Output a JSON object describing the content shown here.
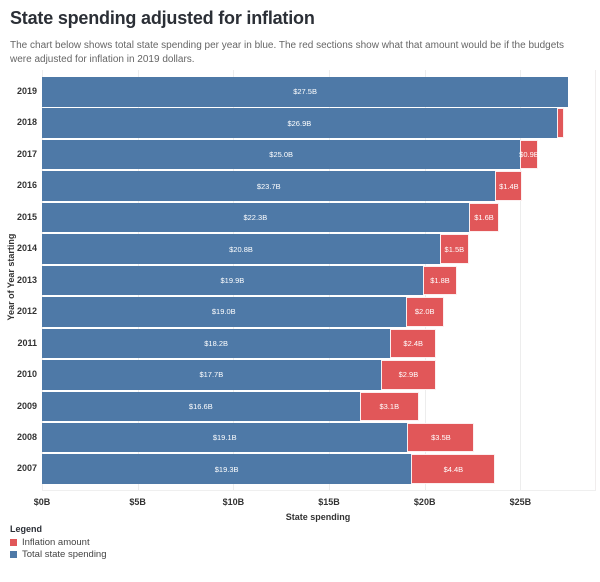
{
  "header": {
    "title": "State spending adjusted for inflation",
    "subtitle": "The chart below shows total state spending per year in blue. The red sections show what that amount would be if the budgets were adjusted for inflation in 2019 dollars."
  },
  "chart_data": {
    "type": "bar",
    "orientation": "horizontal",
    "stacked": true,
    "title": "State spending adjusted for inflation",
    "xlabel": "State spending",
    "ylabel": "Year of Year starting",
    "xlim": [
      0,
      28.9
    ],
    "grid": true,
    "legend_position": "bottom-left",
    "categories": [
      "2019",
      "2018",
      "2017",
      "2016",
      "2015",
      "2014",
      "2013",
      "2012",
      "2011",
      "2010",
      "2009",
      "2008",
      "2007"
    ],
    "series": [
      {
        "name": "Total state spending",
        "color": "#4e79a7",
        "values": [
          27.5,
          26.9,
          25.0,
          23.7,
          22.3,
          20.8,
          19.9,
          19.0,
          18.2,
          17.7,
          16.6,
          19.1,
          19.3
        ],
        "labels": [
          "$27.5B",
          "$26.9B",
          "$25.0B",
          "$23.7B",
          "$22.3B",
          "$20.8B",
          "$19.9B",
          "$19.0B",
          "$18.2B",
          "$17.7B",
          "$16.6B",
          "$19.1B",
          "$19.3B"
        ]
      },
      {
        "name": "Inflation amount",
        "color": "#e15759",
        "values": [
          0,
          0.4,
          0.9,
          1.4,
          1.6,
          1.5,
          1.8,
          2.0,
          2.4,
          2.9,
          3.1,
          3.5,
          4.4
        ],
        "labels": [
          "",
          "",
          "$0.9B",
          "$1.4B",
          "$1.6B",
          "$1.5B",
          "$1.8B",
          "$2.0B",
          "$2.4B",
          "$2.9B",
          "$3.1B",
          "$3.5B",
          "$4.4B"
        ]
      }
    ],
    "x_ticks": [
      {
        "value": 0,
        "label": "$0B"
      },
      {
        "value": 5,
        "label": "$5B"
      },
      {
        "value": 10,
        "label": "$10B"
      },
      {
        "value": 15,
        "label": "$15B"
      },
      {
        "value": 20,
        "label": "$20B"
      },
      {
        "value": 25,
        "label": "$25B"
      }
    ]
  },
  "legend": {
    "heading": "Legend",
    "items": [
      {
        "label": "Inflation amount",
        "color": "#e15759"
      },
      {
        "label": "Total state spending",
        "color": "#4e79a7"
      }
    ]
  }
}
